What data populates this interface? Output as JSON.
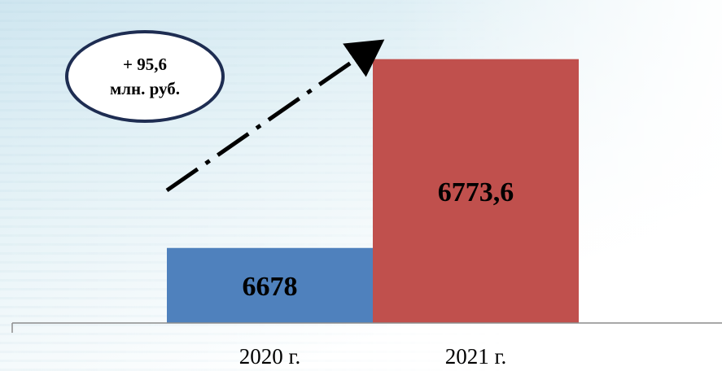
{
  "chart_data": {
    "type": "bar",
    "categories": [
      "2020 г.",
      "2021 г."
    ],
    "values": [
      6678,
      6773.6
    ],
    "value_labels": [
      "6678",
      "6773,6"
    ],
    "ylim": [
      6640,
      6785
    ],
    "grid": false,
    "colors": [
      "#4f81bd",
      "#c0504d"
    ],
    "annotation": {
      "line1": "+ 95,6",
      "line2": "млн. руб."
    }
  }
}
